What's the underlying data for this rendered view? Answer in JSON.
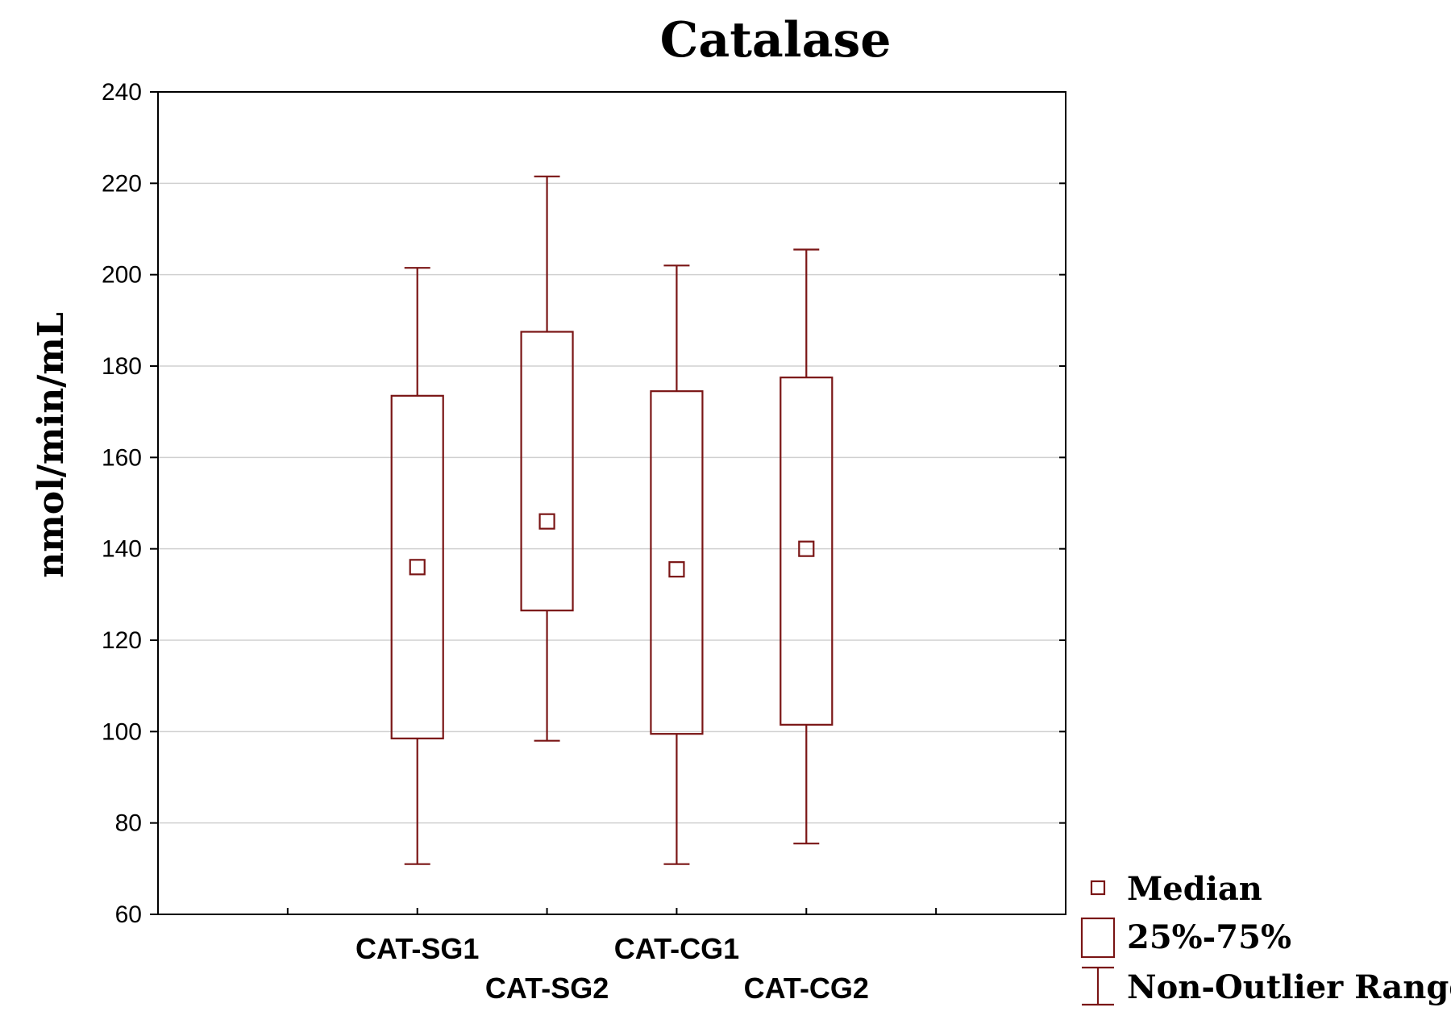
{
  "chart_data": {
    "type": "box",
    "title": "Catalase",
    "xlabel": "",
    "ylabel": "nmol/min/mL",
    "ylim": [
      60,
      240
    ],
    "yticks": [
      60,
      80,
      100,
      120,
      140,
      160,
      180,
      200,
      220,
      240
    ],
    "grid": true,
    "categories": [
      "CAT-SG1",
      "CAT-SG2",
      "CAT-CG1",
      "CAT-CG2"
    ],
    "series": [
      {
        "category": "CAT-SG1",
        "min": 71,
        "q1": 98.5,
        "median": 136,
        "q3": 173.5,
        "max": 201.5
      },
      {
        "category": "CAT-SG2",
        "min": 98,
        "q1": 126.5,
        "median": 146,
        "q3": 187.5,
        "max": 221.5
      },
      {
        "category": "CAT-CG1",
        "min": 71,
        "q1": 99.5,
        "median": 135.5,
        "q3": 174.5,
        "max": 202
      },
      {
        "category": "CAT-CG2",
        "min": 75.5,
        "q1": 101.5,
        "median": 140,
        "q3": 177.5,
        "max": 205.5
      }
    ],
    "legend": {
      "position": "bottom-right",
      "items": [
        {
          "label": "Median",
          "symbol": "small-square"
        },
        {
          "label": "25%-75%",
          "symbol": "box"
        },
        {
          "label": "Non-Outlier Range",
          "symbol": "whisker"
        }
      ]
    },
    "color": "#7a1515"
  }
}
